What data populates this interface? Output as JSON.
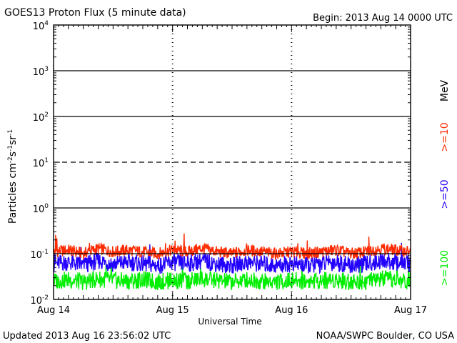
{
  "header": {
    "title": "GOES13 Proton Flux (5 minute data)",
    "begin": "Begin: 2013 Aug 14 0000 UTC"
  },
  "footer": {
    "updated": "Updated 2013 Aug 16 23:56:02 UTC",
    "credit": "NOAA/SWPC Boulder, CO USA"
  },
  "chart_data": {
    "type": "line",
    "title": "GOES13 Proton Flux (5 minute data)",
    "xlabel": "Universal Time",
    "ylabel_parts": [
      "Particles cm",
      "-2",
      "s",
      "-1",
      "sr",
      "-1"
    ],
    "yscale": "log",
    "ylim": [
      0.01,
      10000
    ],
    "xlim_hours": [
      0,
      72
    ],
    "x_tick_labels": [
      "Aug 14",
      "Aug 15",
      "Aug 16",
      "Aug 17"
    ],
    "y_tick_labels": [
      {
        "base": "10",
        "exp": "-2"
      },
      {
        "base": "10",
        "exp": "-1"
      },
      {
        "base": "10",
        "exp": "0"
      },
      {
        "base": "10",
        "exp": "1"
      },
      {
        "base": "10",
        "exp": "2"
      },
      {
        "base": "10",
        "exp": "3"
      },
      {
        "base": "10",
        "exp": "4"
      }
    ],
    "gridlines": [
      {
        "value": 1000,
        "style": "solid"
      },
      {
        "value": 100,
        "style": "solid"
      },
      {
        "value": 10,
        "style": "dashed"
      },
      {
        "value": 1,
        "style": "solid"
      },
      {
        "value": 0.1,
        "style": "solid"
      }
    ],
    "legend_unit": "MeV",
    "series": [
      {
        "name": ">=10",
        "color": "#ff2a00",
        "x": [
          0,
          3,
          6,
          9,
          12,
          15,
          18,
          21,
          24,
          27,
          30,
          33,
          36,
          39,
          42,
          45,
          48,
          51,
          54,
          57,
          60,
          63,
          66,
          69,
          72
        ],
        "y": [
          0.11,
          0.12,
          0.1,
          0.13,
          0.11,
          0.12,
          0.11,
          0.1,
          0.12,
          0.11,
          0.13,
          0.11,
          0.1,
          0.12,
          0.11,
          0.1,
          0.11,
          0.1,
          0.11,
          0.12,
          0.1,
          0.11,
          0.13,
          0.12,
          0.11
        ]
      },
      {
        "name": ">=50",
        "color": "#2200ff",
        "x": [
          0,
          3,
          6,
          9,
          12,
          15,
          18,
          21,
          24,
          27,
          30,
          33,
          36,
          39,
          42,
          45,
          48,
          51,
          54,
          57,
          60,
          63,
          66,
          69,
          72
        ],
        "y": [
          0.06,
          0.065,
          0.055,
          0.07,
          0.06,
          0.065,
          0.06,
          0.055,
          0.065,
          0.06,
          0.07,
          0.06,
          0.055,
          0.065,
          0.06,
          0.055,
          0.06,
          0.055,
          0.06,
          0.065,
          0.055,
          0.06,
          0.07,
          0.065,
          0.06
        ]
      },
      {
        "name": ">=100",
        "color": "#00ee00",
        "x": [
          0,
          3,
          6,
          9,
          12,
          15,
          18,
          21,
          24,
          27,
          30,
          33,
          36,
          39,
          42,
          45,
          48,
          51,
          54,
          57,
          60,
          63,
          66,
          69,
          72
        ],
        "y": [
          0.025,
          0.027,
          0.024,
          0.028,
          0.026,
          0.025,
          0.027,
          0.024,
          0.026,
          0.025,
          0.028,
          0.026,
          0.024,
          0.027,
          0.025,
          0.024,
          0.026,
          0.025,
          0.026,
          0.027,
          0.024,
          0.025,
          0.028,
          0.026,
          0.025
        ]
      }
    ]
  }
}
